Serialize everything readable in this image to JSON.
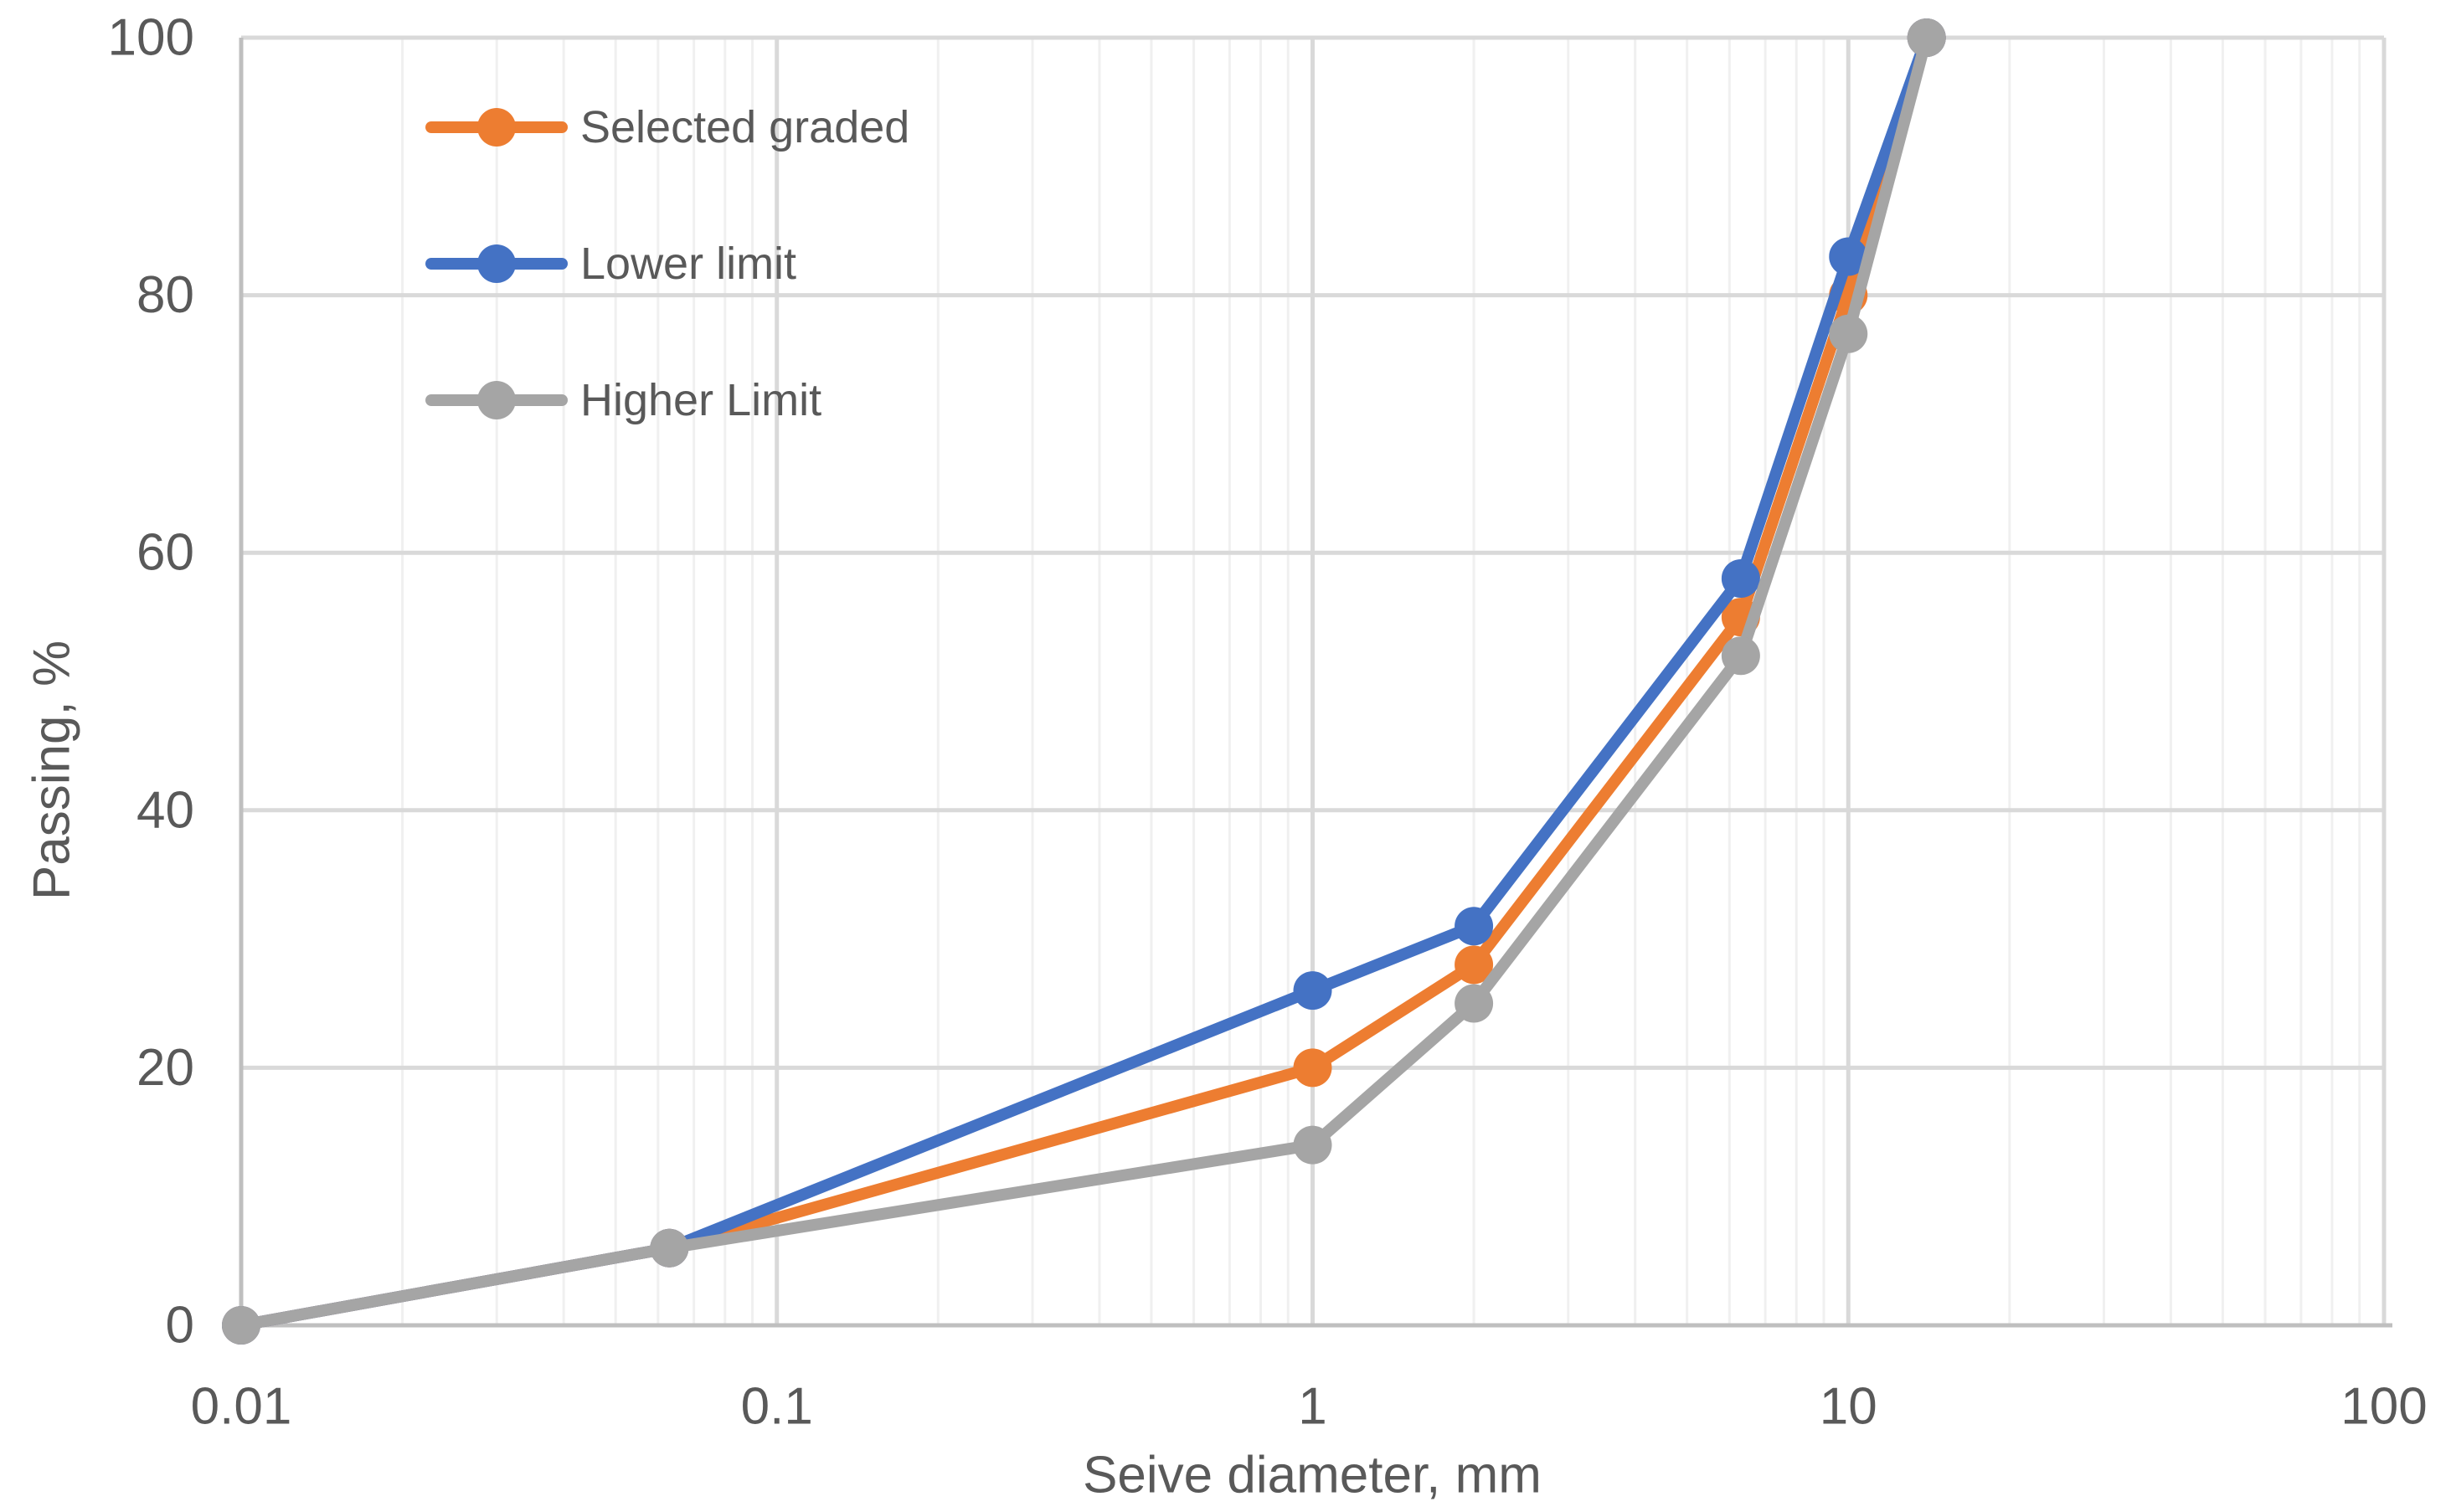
{
  "chart_data": {
    "type": "line",
    "x_scale": "log",
    "x": [
      0.01,
      0.063,
      1,
      2,
      6.3,
      10,
      14
    ],
    "series": [
      {
        "name": "Selected graded",
        "color": "#ED7D31",
        "values": [
          0,
          6,
          20,
          28,
          55,
          80,
          100
        ]
      },
      {
        "name": "Lower limit",
        "color": "#4472C4",
        "values": [
          0,
          6,
          26,
          31,
          58,
          83,
          100
        ]
      },
      {
        "name": "Higher Limit",
        "color": "#A5A5A5",
        "values": [
          0,
          6,
          14,
          25,
          52,
          77,
          100
        ]
      }
    ],
    "draw_order": [
      0,
      1,
      2
    ],
    "xlabel": "Seive diameter, mm",
    "ylabel": "Passing, %",
    "x_ticks": [
      "0.01",
      "0.1",
      "1",
      "10",
      "100"
    ],
    "x_tick_values": [
      0.01,
      0.1,
      1,
      10,
      100
    ],
    "y_ticks": [
      "0",
      "20",
      "40",
      "60",
      "80",
      "100"
    ],
    "y_tick_values": [
      0,
      20,
      40,
      60,
      80,
      100
    ],
    "xlim": [
      0.01,
      100
    ],
    "ylim": [
      0,
      100
    ],
    "grid": "major-horizontal, major-vertical, minor-vertical-log",
    "legend_position": "inside-top-left",
    "legend_items": [
      "Selected graded",
      "Lower limit",
      "Higher Limit"
    ]
  },
  "colors": {
    "series_orange": "#ED7D31",
    "series_blue": "#4472C4",
    "series_gray": "#A5A5A5",
    "text": "#595959",
    "axis_line": "#BFBFBF",
    "gridline_major": "#D9D9D9",
    "gridline_minor": "#F0F0F0",
    "background": "#FFFFFF"
  }
}
